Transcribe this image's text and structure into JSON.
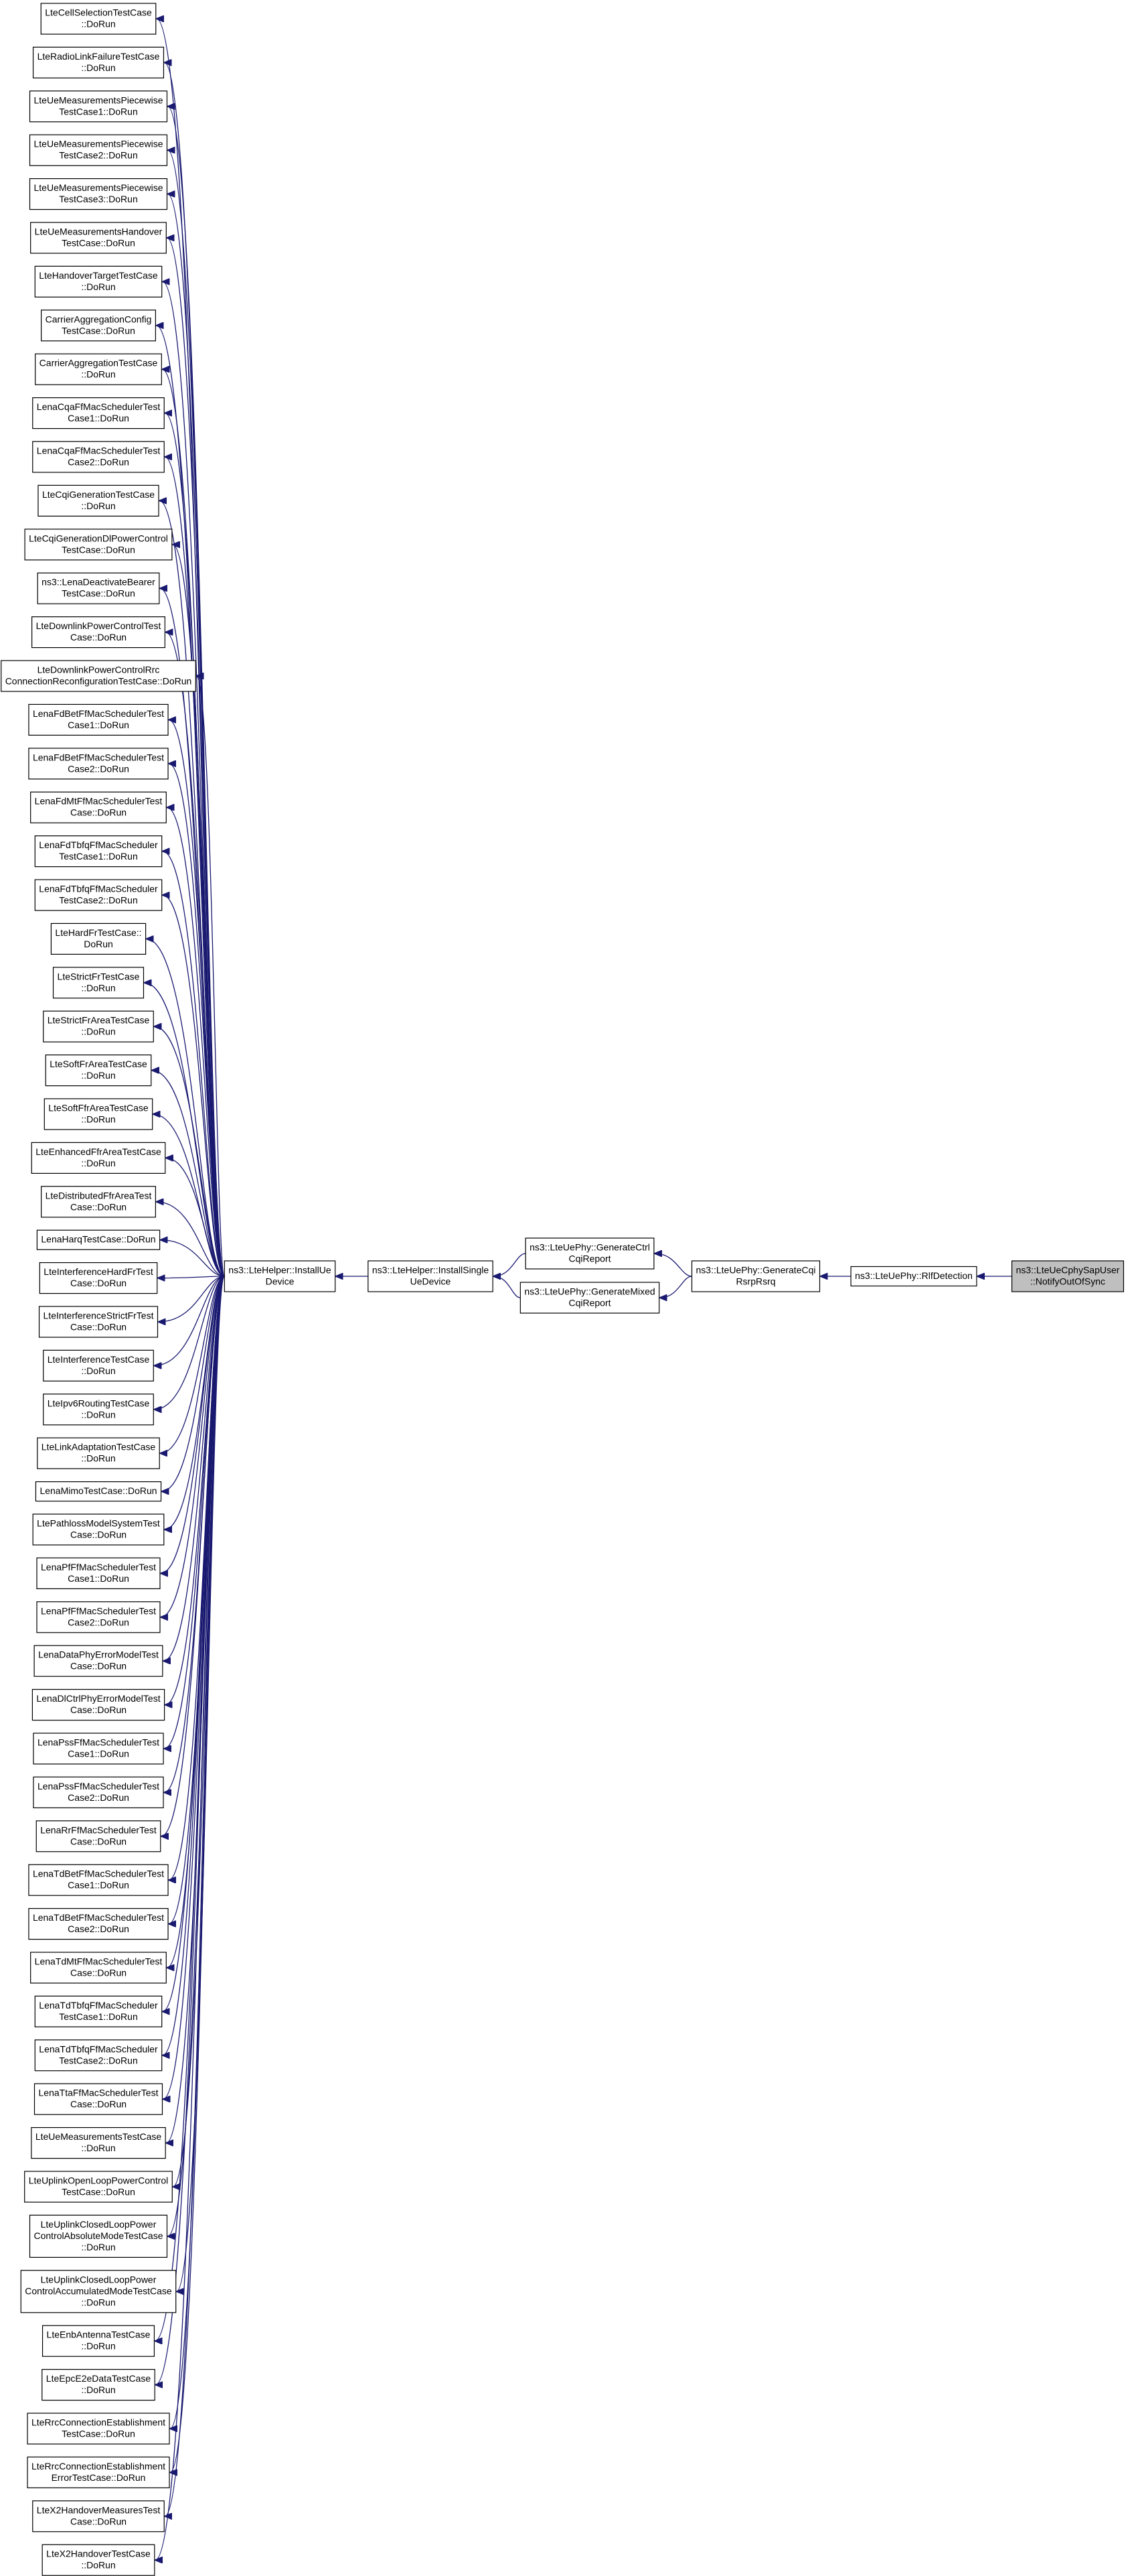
{
  "test_cases": [
    [
      "LteCellSelectionTestCase",
      "::DoRun"
    ],
    [
      "LteRadioLinkFailureTestCase",
      "::DoRun"
    ],
    [
      "LteUeMeasurementsPiecewise",
      "TestCase1::DoRun"
    ],
    [
      "LteUeMeasurementsPiecewise",
      "TestCase2::DoRun"
    ],
    [
      "LteUeMeasurementsPiecewise",
      "TestCase3::DoRun"
    ],
    [
      "LteUeMeasurementsHandover",
      "TestCase::DoRun"
    ],
    [
      "LteHandoverTargetTestCase",
      "::DoRun"
    ],
    [
      "CarrierAggregationConfig",
      "TestCase::DoRun"
    ],
    [
      "CarrierAggregationTestCase",
      "::DoRun"
    ],
    [
      "LenaCqaFfMacSchedulerTest",
      "Case1::DoRun"
    ],
    [
      "LenaCqaFfMacSchedulerTest",
      "Case2::DoRun"
    ],
    [
      "LteCqiGenerationTestCase",
      "::DoRun"
    ],
    [
      "LteCqiGenerationDlPowerControl",
      "TestCase::DoRun"
    ],
    [
      "ns3::LenaDeactivateBearer",
      "TestCase::DoRun"
    ],
    [
      "LteDownlinkPowerControlTest",
      "Case::DoRun"
    ],
    [
      "LteDownlinkPowerControlRrc",
      "ConnectionReconfigurationTestCase::DoRun"
    ],
    [
      "LenaFdBetFfMacSchedulerTest",
      "Case1::DoRun"
    ],
    [
      "LenaFdBetFfMacSchedulerTest",
      "Case2::DoRun"
    ],
    [
      "LenaFdMtFfMacSchedulerTest",
      "Case::DoRun"
    ],
    [
      "LenaFdTbfqFfMacScheduler",
      "TestCase1::DoRun"
    ],
    [
      "LenaFdTbfqFfMacScheduler",
      "TestCase2::DoRun"
    ],
    [
      "LteHardFrTestCase::",
      "DoRun"
    ],
    [
      "LteStrictFrTestCase",
      "::DoRun"
    ],
    [
      "LteStrictFrAreaTestCase",
      "::DoRun"
    ],
    [
      "LteSoftFrAreaTestCase",
      "::DoRun"
    ],
    [
      "LteSoftFfrAreaTestCase",
      "::DoRun"
    ],
    [
      "LteEnhancedFfrAreaTestCase",
      "::DoRun"
    ],
    [
      "LteDistributedFfrAreaTest",
      "Case::DoRun"
    ],
    [
      "LenaHarqTestCase::DoRun"
    ],
    [
      "LteInterferenceHardFrTest",
      "Case::DoRun"
    ],
    [
      "LteInterferenceStrictFrTest",
      "Case::DoRun"
    ],
    [
      "LteInterferenceTestCase",
      "::DoRun"
    ],
    [
      "LteIpv6RoutingTestCase",
      "::DoRun"
    ],
    [
      "LteLinkAdaptationTestCase",
      "::DoRun"
    ],
    [
      "LenaMimoTestCase::DoRun"
    ],
    [
      "LtePathlossModelSystemTest",
      "Case::DoRun"
    ],
    [
      "LenaPfFfMacSchedulerTest",
      "Case1::DoRun"
    ],
    [
      "LenaPfFfMacSchedulerTest",
      "Case2::DoRun"
    ],
    [
      "LenaDataPhyErrorModelTest",
      "Case::DoRun"
    ],
    [
      "LenaDlCtrlPhyErrorModelTest",
      "Case::DoRun"
    ],
    [
      "LenaPssFfMacSchedulerTest",
      "Case1::DoRun"
    ],
    [
      "LenaPssFfMacSchedulerTest",
      "Case2::DoRun"
    ],
    [
      "LenaRrFfMacSchedulerTest",
      "Case::DoRun"
    ],
    [
      "LenaTdBetFfMacSchedulerTest",
      "Case1::DoRun"
    ],
    [
      "LenaTdBetFfMacSchedulerTest",
      "Case2::DoRun"
    ],
    [
      "LenaTdMtFfMacSchedulerTest",
      "Case::DoRun"
    ],
    [
      "LenaTdTbfqFfMacScheduler",
      "TestCase1::DoRun"
    ],
    [
      "LenaTdTbfqFfMacScheduler",
      "TestCase2::DoRun"
    ],
    [
      "LenaTtaFfMacSchedulerTest",
      "Case::DoRun"
    ],
    [
      "LteUeMeasurementsTestCase",
      "::DoRun"
    ],
    [
      "LteUplinkOpenLoopPowerControl",
      "TestCase::DoRun"
    ],
    [
      "LteUplinkClosedLoopPower",
      "ControlAbsoluteModeTestCase",
      "::DoRun"
    ],
    [
      "LteUplinkClosedLoopPower",
      "ControlAccumulatedModeTestCase",
      "::DoRun"
    ],
    [
      "LteEnbAntennaTestCase",
      "::DoRun"
    ],
    [
      "LteEpcE2eDataTestCase",
      "::DoRun"
    ],
    [
      "LteRrcConnectionEstablishment",
      "TestCase::DoRun"
    ],
    [
      "LteRrcConnectionEstablishment",
      "ErrorTestCase::DoRun"
    ],
    [
      "LteX2HandoverMeasuresTest",
      "Case::DoRun"
    ],
    [
      "LteX2HandoverTestCase",
      "::DoRun"
    ]
  ],
  "functions": [
    [
      "ns3::LteHelper::InstallUe",
      "Device"
    ],
    [
      "ns3::LteHelper::InstallSingle",
      "UeDevice"
    ],
    [
      "ns3::LteUePhy::GenerateCtrl",
      "CqiReport"
    ],
    [
      "ns3::LteUePhy::GenerateMixed",
      "CqiReport"
    ],
    [
      "ns3::LteUePhy::GenerateCqi",
      "RsrpRsrq"
    ],
    [
      "ns3::LteUePhy::RlfDetection"
    ],
    [
      "ns3::LteUeCphySapUser",
      "::NotifyOutOfSync"
    ]
  ]
}
